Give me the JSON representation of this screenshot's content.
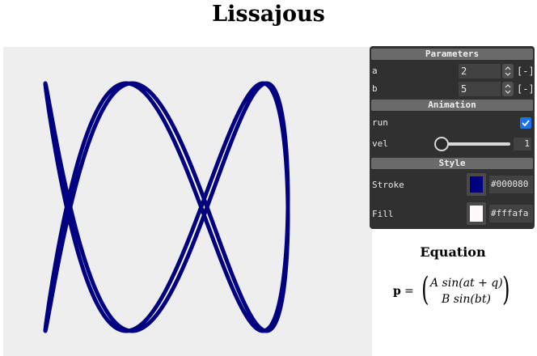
{
  "title": "Lissajous",
  "panel": {
    "parameters_header": "Parameters",
    "a": {
      "label": "a",
      "value": "2",
      "unit": "[-]"
    },
    "b": {
      "label": "b",
      "value": "5",
      "unit": "[-]"
    },
    "animation_header": "Animation",
    "run": {
      "label": "run",
      "checked": true
    },
    "vel": {
      "label": "vel",
      "value": "1",
      "fraction": 0.0
    },
    "style_header": "Style",
    "stroke": {
      "label": "Stroke",
      "hex": "#000080",
      "color": "#000080"
    },
    "fill": {
      "label": "Fill",
      "hex": "#fffafa",
      "color": "#fffafa"
    }
  },
  "equation": {
    "title": "Equation",
    "lhs": "p",
    "equals": "=",
    "row1": "A sin(at + q)",
    "row2": "B sin(bt)"
  },
  "curve": {
    "a": 2,
    "b": 5,
    "stroke_color": "#000080",
    "fill_color": "#fffafa",
    "background_color": "#eeeeee"
  }
}
